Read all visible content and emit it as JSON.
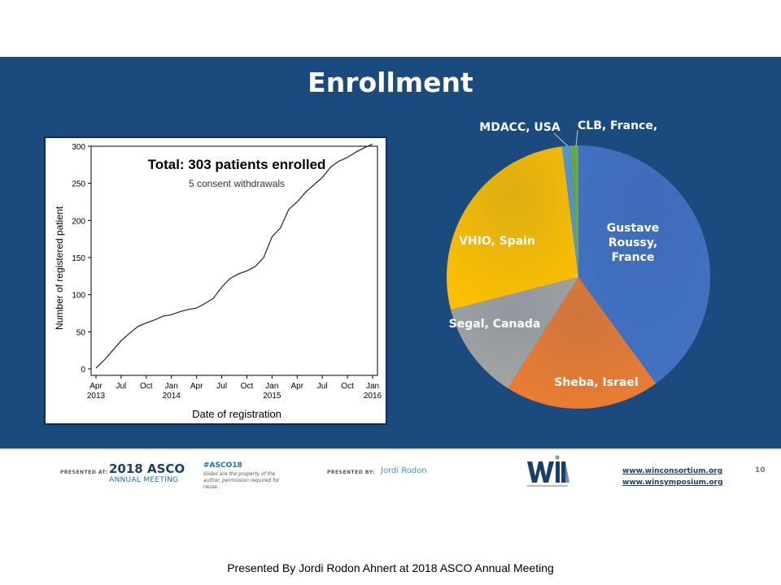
{
  "slide": {
    "title": "Enrollment",
    "caption": "Presented By Jordi Rodon Ahnert at 2018 ASCO Annual Meeting"
  },
  "footer": {
    "presented_at": "PRESENTED AT:",
    "asco_year": "2018 ASCO",
    "asco_sub": "ANNUAL MEETING",
    "hashtag": "#ASCO18",
    "note": "Slides are the property of the author, permission required for reuse.",
    "presented_by": "PRESENTED BY:",
    "presenter": "Jordi Rodon",
    "link1": "www.winconsortium.org",
    "link2": "www.winsymposium.org",
    "page_number": "10",
    "colors": {
      "dark_blue": "#1a3f6f",
      "light_blue": "#1a6fb5",
      "logo_green": "#6ab04c"
    }
  },
  "chart_data": [
    {
      "type": "line",
      "title": "Total: 303 patients enrolled",
      "subtitle": "5 consent withdrawals",
      "xlabel": "Date of registration",
      "ylabel": "Number of registered patient",
      "ylim": [
        0,
        300
      ],
      "yticks": [
        0,
        50,
        100,
        150,
        200,
        250,
        300
      ],
      "xlim": [
        "2013-04",
        "2016-01"
      ],
      "xticks": [
        {
          "value": "2013-04",
          "line1": "Apr",
          "line2": "2013"
        },
        {
          "value": "2013-07",
          "line1": "Jul",
          "line2": ""
        },
        {
          "value": "2013-10",
          "line1": "Oct",
          "line2": ""
        },
        {
          "value": "2014-01",
          "line1": "Jan",
          "line2": "2014"
        },
        {
          "value": "2014-04",
          "line1": "Apr",
          "line2": ""
        },
        {
          "value": "2014-07",
          "line1": "Jul",
          "line2": ""
        },
        {
          "value": "2014-10",
          "line1": "Oct",
          "line2": ""
        },
        {
          "value": "2015-01",
          "line1": "Jan",
          "line2": "2015"
        },
        {
          "value": "2015-04",
          "line1": "Apr",
          "line2": ""
        },
        {
          "value": "2015-07",
          "line1": "Jul",
          "line2": ""
        },
        {
          "value": "2015-10",
          "line1": "Oct",
          "line2": ""
        },
        {
          "value": "2016-01",
          "line1": "Jan",
          "line2": "2016"
        }
      ],
      "series": [
        {
          "x": [
            "2013-04",
            "2013-05",
            "2013-06",
            "2013-07",
            "2013-08",
            "2013-09",
            "2013-10",
            "2013-11",
            "2013-12",
            "2014-01",
            "2014-02",
            "2014-03",
            "2014-04",
            "2014-05",
            "2014-06",
            "2014-07",
            "2014-08",
            "2014-09",
            "2014-10",
            "2014-11",
            "2014-12",
            "2015-01",
            "2015-02",
            "2015-03",
            "2015-04",
            "2015-05",
            "2015-06",
            "2015-07",
            "2015-08",
            "2015-09",
            "2015-10",
            "2015-11",
            "2015-12",
            "2016-01"
          ],
          "y": [
            1,
            12,
            25,
            38,
            48,
            57,
            62,
            66,
            71,
            73,
            77,
            80,
            82,
            88,
            95,
            110,
            122,
            128,
            132,
            138,
            150,
            178,
            190,
            215,
            225,
            238,
            248,
            258,
            272,
            280,
            285,
            292,
            298,
            303
          ]
        }
      ],
      "grid": false
    },
    {
      "type": "pie",
      "slices": [
        {
          "label": "Gustave Roussy, France",
          "value": 40,
          "color": "#4472c4"
        },
        {
          "label": "Sheba, Israel",
          "value": 19,
          "color": "#ed7d31"
        },
        {
          "label": "Segal, Canada",
          "value": 12,
          "color": "#a5a5a5"
        },
        {
          "label": "VHIO, Spain",
          "value": 27,
          "color": "#ffc000"
        },
        {
          "label": "MDACC, USA",
          "value": 1,
          "color": "#5b9bd5"
        },
        {
          "label": "CLB, France,",
          "value": 1,
          "color": "#70ad47"
        }
      ]
    }
  ]
}
